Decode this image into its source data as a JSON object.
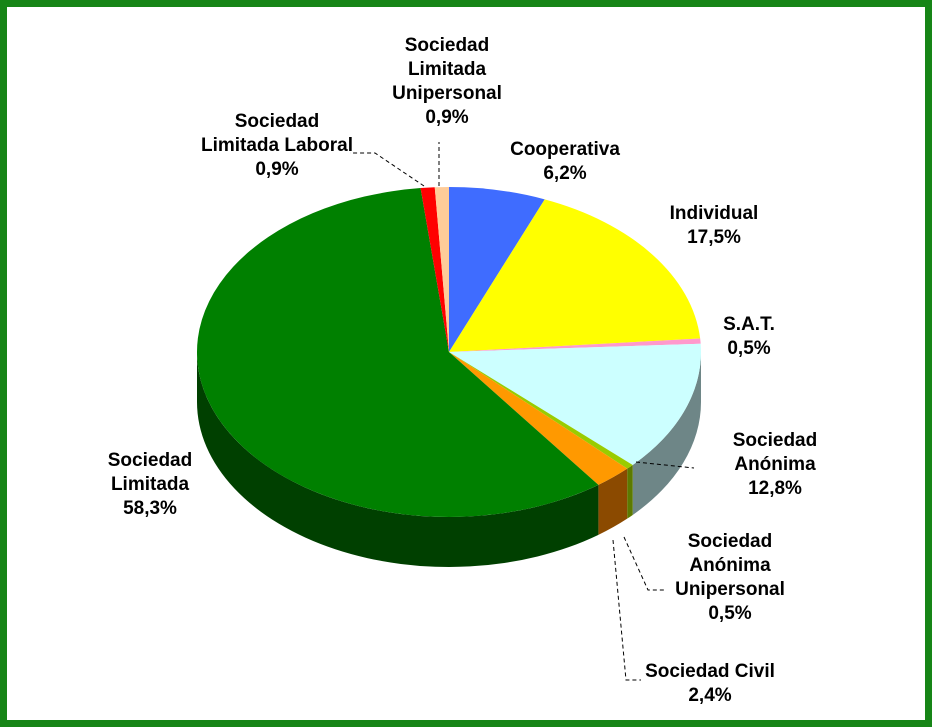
{
  "chart_data": {
    "type": "pie",
    "title": "",
    "legend": "none",
    "style": "3d",
    "slices": [
      {
        "label_lines": [
          "Cooperativa"
        ],
        "value": 6.2,
        "value_text": "6,2%",
        "color": "#3F6CFF",
        "side_color": "#2A4BB0"
      },
      {
        "label_lines": [
          "Individual"
        ],
        "value": 17.5,
        "value_text": "17,5%",
        "color": "#FFFF00",
        "side_color": "#B8B800"
      },
      {
        "label_lines": [
          "S.A.T."
        ],
        "value": 0.5,
        "value_text": "0,5%",
        "color": "#FF99CC",
        "side_color": "#C06690"
      },
      {
        "label_lines": [
          "Sociedad",
          "Anónima"
        ],
        "value": 12.8,
        "value_text": "12,8%",
        "color": "#CCFFFF",
        "side_color": "#6E8687"
      },
      {
        "label_lines": [
          "Sociedad",
          "Anónima",
          "Unipersonal"
        ],
        "value": 0.5,
        "value_text": "0,5%",
        "color": "#99CC00",
        "side_color": "#5C7A00"
      },
      {
        "label_lines": [
          "Sociedad Civil"
        ],
        "value": 2.4,
        "value_text": "2,4%",
        "color": "#FF9900",
        "side_color": "#8B4A00"
      },
      {
        "label_lines": [
          "Sociedad",
          "Limitada"
        ],
        "value": 58.3,
        "value_text": "58,3%",
        "color": "#008000",
        "side_color": "#004000"
      },
      {
        "label_lines": [
          "Sociedad",
          "Limitada Laboral"
        ],
        "value": 0.9,
        "value_text": "0,9%",
        "color": "#FF0000",
        "side_color": "#990000"
      },
      {
        "label_lines": [
          "Sociedad",
          "Limitada",
          "Unipersonal"
        ],
        "value": 0.9,
        "value_text": "0,9%",
        "color": "#FFCC99",
        "side_color": "#B38F6B"
      }
    ]
  }
}
